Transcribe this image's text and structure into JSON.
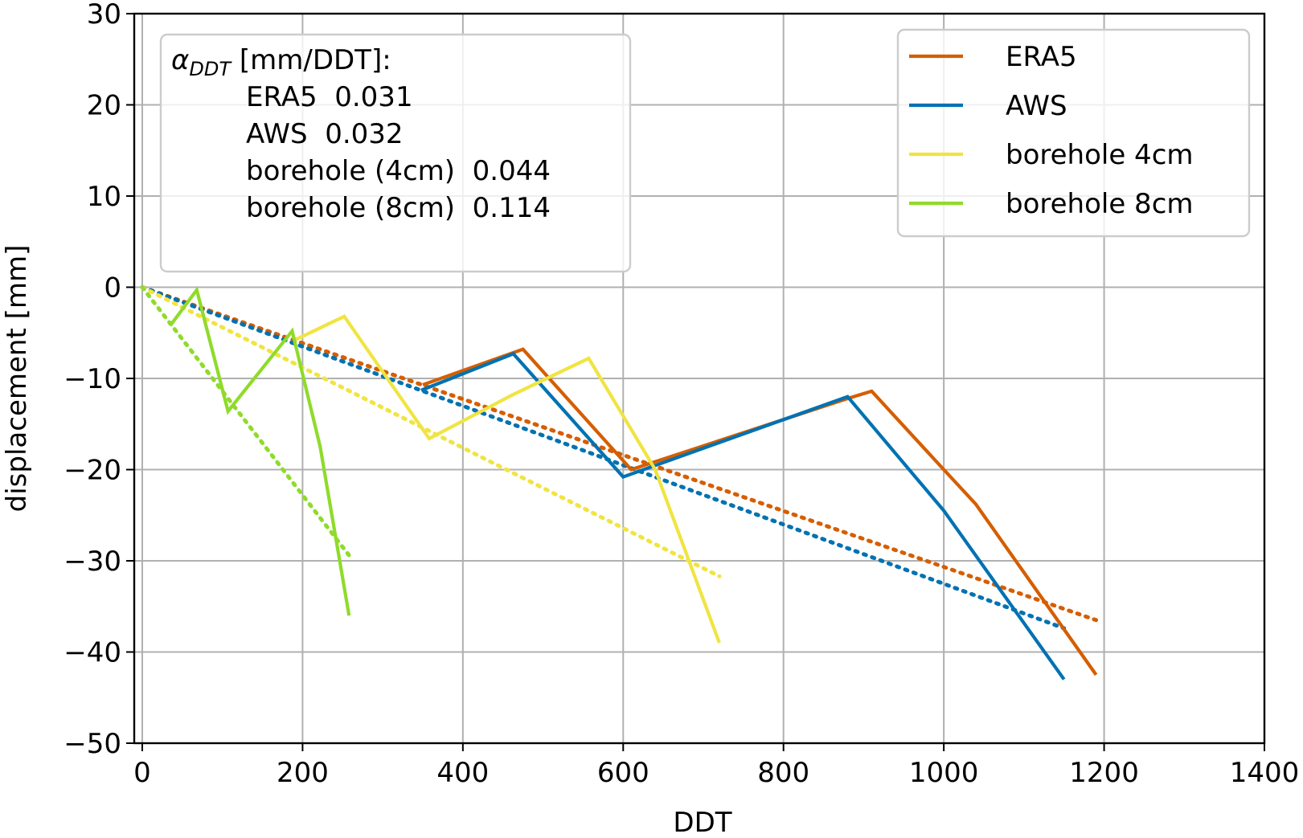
{
  "chart_data": {
    "type": "line",
    "xlabel": "DDT",
    "ylabel": "displacement [mm]",
    "xlim": [
      -10,
      1400
    ],
    "ylim": [
      -50,
      30
    ],
    "xticks": [
      0,
      200,
      400,
      600,
      800,
      1000,
      1200,
      1400
    ],
    "yticks": [
      30,
      20,
      10,
      0,
      -10,
      -20,
      -30,
      -40,
      -50
    ],
    "xtick_labels": [
      "0",
      "200",
      "400",
      "600",
      "800",
      "1000",
      "1200",
      "1400"
    ],
    "ytick_labels": [
      "30",
      "20",
      "10",
      "0",
      "−10",
      "−20",
      "−30",
      "−40",
      "−50"
    ],
    "grid": true,
    "legend_position": "top-right",
    "series": [
      {
        "name": "ERA5",
        "color": "#D55E00",
        "x": [
          350,
          475,
          610,
          880,
          910,
          1000,
          1040,
          1190
        ],
        "y": [
          -10.7,
          -6.8,
          -20.0,
          -12.2,
          -11.4,
          -20.0,
          -23.8,
          -42.5
        ],
        "fit": {
          "x": [
            0,
            1190
          ],
          "y": [
            0,
            -36.5
          ],
          "style": "dotted"
        }
      },
      {
        "name": "AWS",
        "color": "#0072B2",
        "x": [
          348,
          463,
          600,
          880,
          1000,
          1150
        ],
        "y": [
          -11.3,
          -7.3,
          -20.8,
          -12.0,
          -24.5,
          -43.0
        ],
        "fit": {
          "x": [
            0,
            1150
          ],
          "y": [
            0,
            -37.4
          ],
          "style": "dotted"
        }
      },
      {
        "name": "borehole 4cm",
        "color": "#F0E442",
        "x": [
          190,
          252,
          358,
          462,
          557,
          640,
          720
        ],
        "y": [
          -5.8,
          -3.2,
          -16.6,
          -11.8,
          -7.8,
          -20.0,
          -39.0
        ],
        "fit": {
          "x": [
            0,
            720
          ],
          "y": [
            0,
            -31.7
          ],
          "style": "dotted"
        }
      },
      {
        "name": "borehole 8cm",
        "color": "#8FDB2A",
        "x": [
          35,
          68,
          107,
          187,
          222,
          258
        ],
        "y": [
          -4.2,
          -0.3,
          -13.6,
          -4.8,
          -17.5,
          -36.0
        ],
        "fit": {
          "x": [
            0,
            258
          ],
          "y": [
            0,
            -29.4
          ],
          "style": "dotted"
        }
      }
    ],
    "annotation": {
      "title_symbol": "α",
      "title_subscript": "DDT",
      "title_units": " [mm/DDT]:",
      "lines": [
        "ERA5  0.031",
        "AWS  0.032",
        "borehole (4cm)  0.044",
        "borehole (8cm)  0.114"
      ]
    }
  }
}
